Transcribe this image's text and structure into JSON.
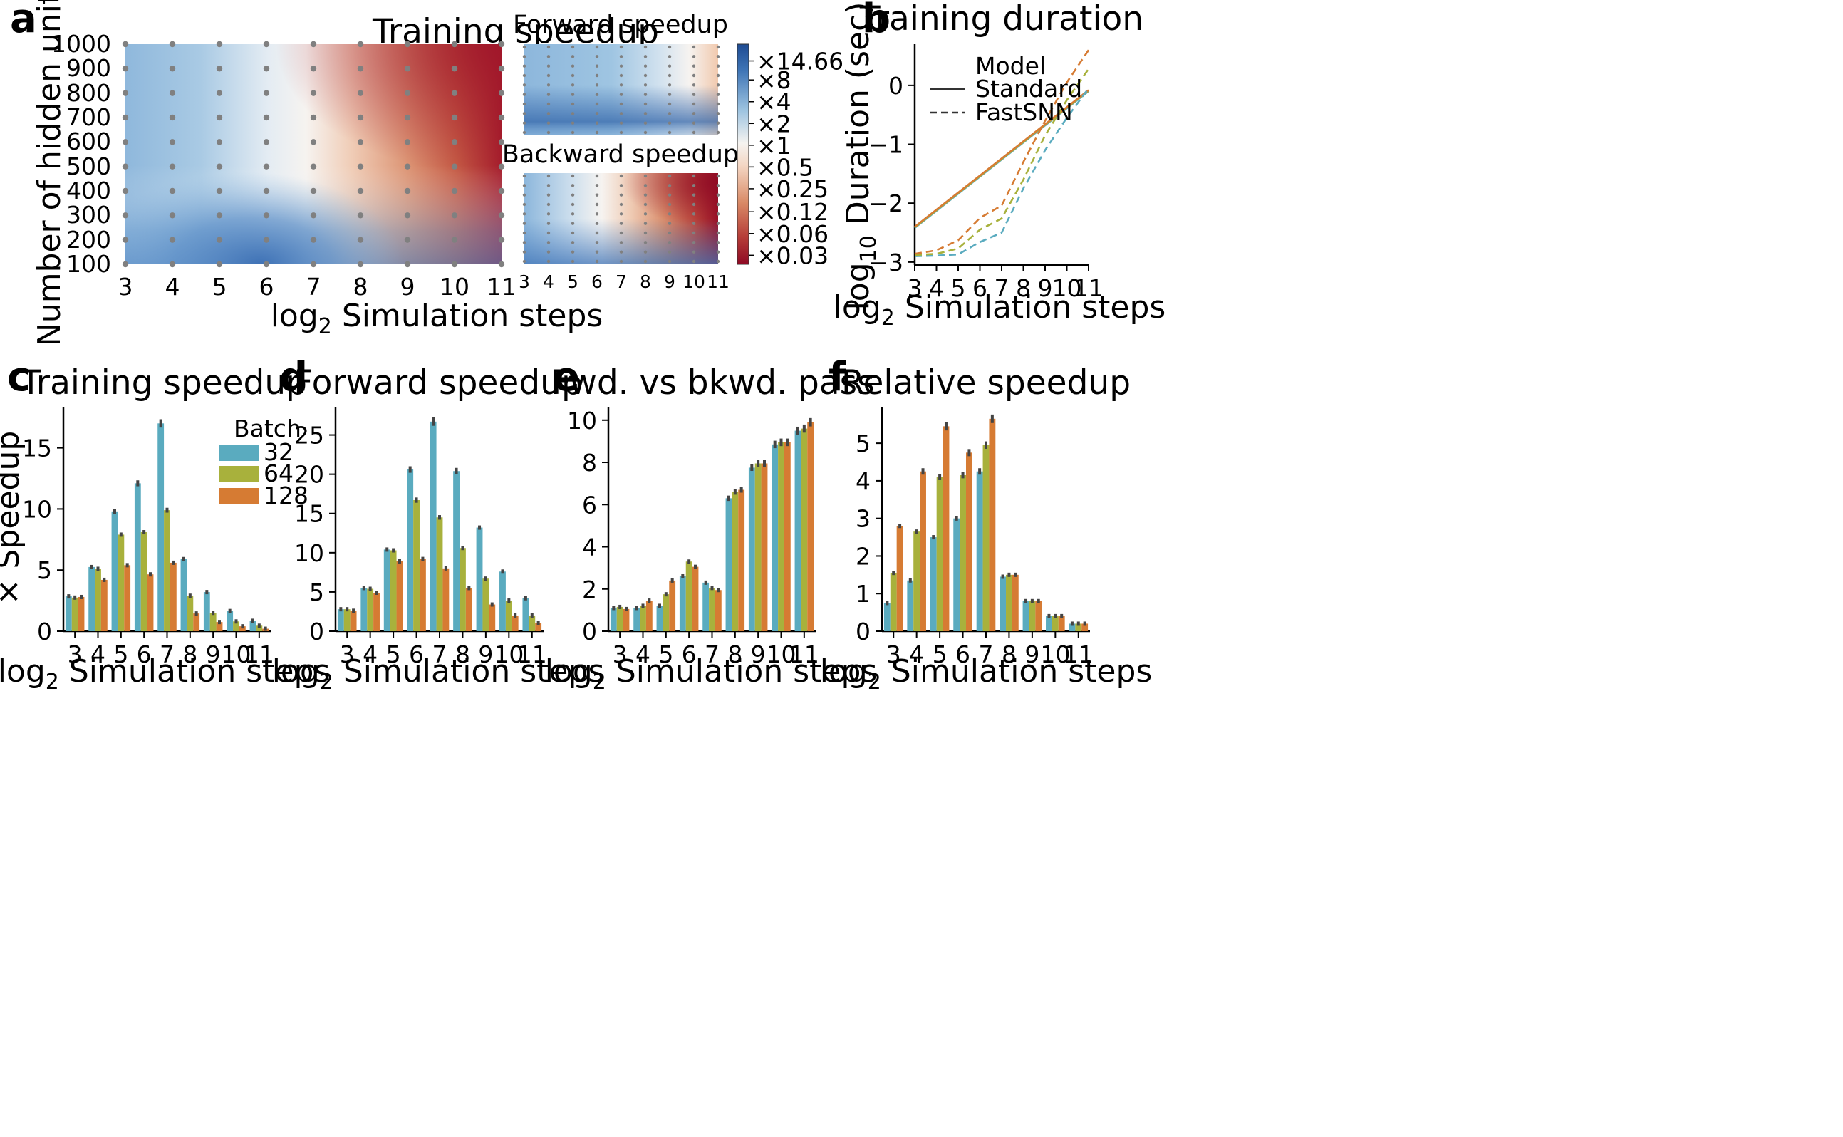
{
  "colors": {
    "batch_32": "#5aabbf",
    "batch_64": "#a8b13c",
    "batch_128": "#d67b33",
    "heat_blue": "#3565a8",
    "heat_white": "#f5f3f0",
    "heat_red": "#9b0e25",
    "dot": "#808080"
  },
  "panels": {
    "a": {
      "letter": "a"
    },
    "b": {
      "letter": "b"
    },
    "c": {
      "letter": "c"
    },
    "d": {
      "letter": "d"
    },
    "e": {
      "letter": "e"
    },
    "f": {
      "letter": "f"
    }
  },
  "shared": {
    "xlabel_prefix": "log",
    "xlabel_sub": "2",
    "xlabel_rest": " Simulation steps",
    "ylabel_speedup": "× Speedup",
    "ylabel_hidden": "Number of hidden units"
  },
  "chart_data": [
    {
      "id": "a-main",
      "type": "heatmap",
      "title": "Training speedup",
      "x": [
        3,
        4,
        5,
        6,
        7,
        8,
        9,
        10,
        11
      ],
      "y": [
        100,
        200,
        300,
        400,
        500,
        600,
        700,
        800,
        900,
        1000
      ],
      "ylabel": "Number of hidden units",
      "colorbar": {
        "scale": "log2",
        "tick_labels": [
          "×14.66",
          "×8",
          "×4",
          "×2",
          "×1",
          "×0.5",
          "×0.25",
          "×0.12",
          "×0.06",
          "×0.03"
        ],
        "range": [
          0.0225,
          25
        ]
      }
    },
    {
      "id": "a-forward",
      "type": "heatmap",
      "title": "Forward speedup",
      "x": [
        3,
        4,
        5,
        6,
        7,
        8,
        9,
        10,
        11
      ]
    },
    {
      "id": "a-backward",
      "type": "heatmap",
      "title": "Backward speedup",
      "x": [
        3,
        4,
        5,
        6,
        7,
        8,
        9,
        10,
        11
      ]
    },
    {
      "id": "b",
      "type": "line",
      "title": "Training duration",
      "ylabel_prefix": "log",
      "ylabel_sub": "10",
      "ylabel_rest": " Duration (sec)",
      "x": [
        3,
        4,
        5,
        6,
        7,
        8,
        9,
        10,
        11
      ],
      "xlim": [
        3,
        11
      ],
      "ylim": [
        -3.05,
        0.7
      ],
      "yticks": [
        0,
        -1,
        -2,
        -3
      ],
      "ytick_labels": [
        "0",
        "−1",
        "−2",
        "−3"
      ],
      "legend": {
        "title": "Model",
        "standard": "Standard",
        "fastsnn": "FastSNN",
        "placement": "top-left"
      },
      "series": [
        {
          "model": "Standard",
          "batch": 32,
          "style": "solid",
          "values": [
            -2.42,
            -2.13,
            -1.84,
            -1.55,
            -1.26,
            -0.97,
            -0.68,
            -0.39,
            -0.1
          ]
        },
        {
          "model": "Standard",
          "batch": 64,
          "style": "solid",
          "values": [
            -2.41,
            -2.12,
            -1.83,
            -1.54,
            -1.25,
            -0.96,
            -0.67,
            -0.38,
            -0.09
          ]
        },
        {
          "model": "Standard",
          "batch": 128,
          "style": "solid",
          "values": [
            -2.4,
            -2.11,
            -1.82,
            -1.53,
            -1.24,
            -0.95,
            -0.66,
            -0.37,
            -0.08
          ]
        },
        {
          "model": "FastSNN",
          "batch": 32,
          "style": "dashed",
          "values": [
            -2.9,
            -2.89,
            -2.87,
            -2.66,
            -2.5,
            -1.75,
            -1.1,
            -0.55,
            -0.05
          ]
        },
        {
          "model": "FastSNN",
          "batch": 64,
          "style": "dashed",
          "values": [
            -2.88,
            -2.86,
            -2.77,
            -2.45,
            -2.26,
            -1.6,
            -0.85,
            -0.25,
            0.28
          ]
        },
        {
          "model": "FastSNN",
          "batch": 128,
          "style": "dashed",
          "values": [
            -2.86,
            -2.8,
            -2.63,
            -2.25,
            -2.04,
            -1.3,
            -0.6,
            0.05,
            0.6
          ]
        }
      ]
    },
    {
      "id": "c",
      "type": "bar",
      "title": "Training speedup",
      "ylabel": "× Speedup",
      "categories": [
        "3",
        "4",
        "5",
        "6",
        "7",
        "8",
        "9",
        "10",
        "11"
      ],
      "ylim": [
        0,
        18.3
      ],
      "yticks": [
        0,
        5,
        10,
        15
      ],
      "legend": {
        "title": "Batch",
        "placement": "top-right"
      },
      "series": [
        {
          "name": "32",
          "values": [
            2.85,
            5.25,
            9.8,
            12.1,
            17.0,
            5.9,
            3.2,
            1.65,
            0.85
          ]
        },
        {
          "name": "64",
          "values": [
            2.75,
            5.1,
            7.9,
            8.1,
            9.9,
            2.9,
            1.5,
            0.8,
            0.45
          ]
        },
        {
          "name": "128",
          "values": [
            2.8,
            4.2,
            5.4,
            4.65,
            5.6,
            1.45,
            0.75,
            0.4,
            0.2
          ]
        }
      ]
    },
    {
      "id": "d",
      "type": "bar",
      "title": "Forward speedup",
      "categories": [
        "3",
        "4",
        "5",
        "6",
        "7",
        "8",
        "9",
        "10",
        "11"
      ],
      "ylim": [
        0,
        28.5
      ],
      "yticks": [
        0,
        5,
        10,
        15,
        20,
        25
      ],
      "series": [
        {
          "name": "32",
          "values": [
            2.8,
            5.5,
            10.4,
            20.6,
            26.7,
            20.4,
            13.2,
            7.6,
            4.2
          ]
        },
        {
          "name": "64",
          "values": [
            2.8,
            5.4,
            10.3,
            16.7,
            14.5,
            10.6,
            6.7,
            3.9,
            2.0
          ]
        },
        {
          "name": "128",
          "values": [
            2.6,
            4.9,
            8.9,
            9.2,
            8.0,
            5.5,
            3.4,
            2.0,
            1.0
          ]
        }
      ]
    },
    {
      "id": "e",
      "type": "bar",
      "title": "Fwd. vs bkwd. pass",
      "categories": [
        "3",
        "4",
        "5",
        "6",
        "7",
        "8",
        "9",
        "10",
        "11"
      ],
      "ylim": [
        0,
        10.6
      ],
      "yticks": [
        0,
        2,
        4,
        6,
        8,
        10
      ],
      "series": [
        {
          "name": "32",
          "values": [
            1.1,
            1.1,
            1.2,
            2.6,
            2.3,
            6.3,
            7.75,
            8.85,
            9.5
          ]
        },
        {
          "name": "64",
          "values": [
            1.15,
            1.2,
            1.75,
            3.3,
            2.05,
            6.6,
            7.95,
            8.95,
            9.6
          ]
        },
        {
          "name": "128",
          "values": [
            1.05,
            1.45,
            2.4,
            3.05,
            1.95,
            6.7,
            7.95,
            8.95,
            9.9
          ]
        }
      ]
    },
    {
      "id": "f",
      "type": "bar",
      "title": "Relative speedup",
      "categories": [
        "3",
        "4",
        "5",
        "6",
        "7",
        "8",
        "9",
        "10",
        "11"
      ],
      "ylim": [
        0,
        5.95
      ],
      "yticks": [
        0,
        1,
        2,
        3,
        4,
        5
      ],
      "series": [
        {
          "name": "32",
          "values": [
            0.75,
            1.35,
            2.5,
            3.0,
            4.25,
            1.45,
            0.8,
            0.4,
            0.2
          ]
        },
        {
          "name": "64",
          "values": [
            1.55,
            2.65,
            4.1,
            4.15,
            4.95,
            1.5,
            0.8,
            0.4,
            0.2
          ]
        },
        {
          "name": "128",
          "values": [
            2.8,
            4.25,
            5.45,
            4.75,
            5.65,
            1.5,
            0.8,
            0.4,
            0.2
          ]
        }
      ]
    }
  ]
}
